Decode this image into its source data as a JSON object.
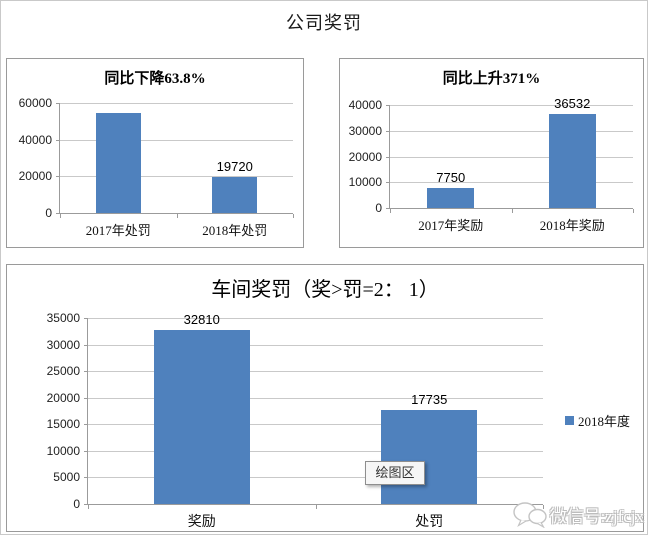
{
  "main_title": "公司奖罚",
  "watermark": {
    "text": "微信号:zjfcjx",
    "icon": "wechat-icon"
  },
  "colors": {
    "bar": "#4f81bd",
    "gridline": "#c9c9c9",
    "panel_border": "#9a9a9a"
  },
  "chart_data": [
    {
      "type": "bar",
      "title": "同比下降63.8%",
      "categories": [
        "2017年处罚",
        "2018年处罚"
      ],
      "values": [
        54475,
        19720
      ],
      "value_labels": [
        "",
        "19720"
      ],
      "ylim": [
        0,
        60000
      ],
      "yticks": [
        0,
        20000,
        40000,
        60000
      ],
      "bar_color": "#4f81bd",
      "grid": true,
      "legend_position": "none"
    },
    {
      "type": "bar",
      "title": "同比上升371%",
      "categories": [
        "2017年奖励",
        "2018年奖励"
      ],
      "values": [
        7750,
        36532
      ],
      "value_labels": [
        "7750",
        "36532"
      ],
      "ylim": [
        0,
        40000
      ],
      "yticks": [
        0,
        10000,
        20000,
        30000,
        40000
      ],
      "bar_color": "#4f81bd",
      "grid": true,
      "legend_position": "none"
    },
    {
      "type": "bar",
      "title": "车间奖罚（奖>罚=2： 1）",
      "categories": [
        "奖励",
        "处罚"
      ],
      "values": [
        32810,
        17735
      ],
      "value_labels": [
        "32810",
        "17735"
      ],
      "ylim": [
        0,
        35000
      ],
      "yticks": [
        0,
        5000,
        10000,
        15000,
        20000,
        25000,
        30000,
        35000
      ],
      "bar_color": "#4f81bd",
      "grid": true,
      "legend": {
        "label": "2018年度",
        "position": "right"
      },
      "tooltip": "绘图区"
    }
  ]
}
